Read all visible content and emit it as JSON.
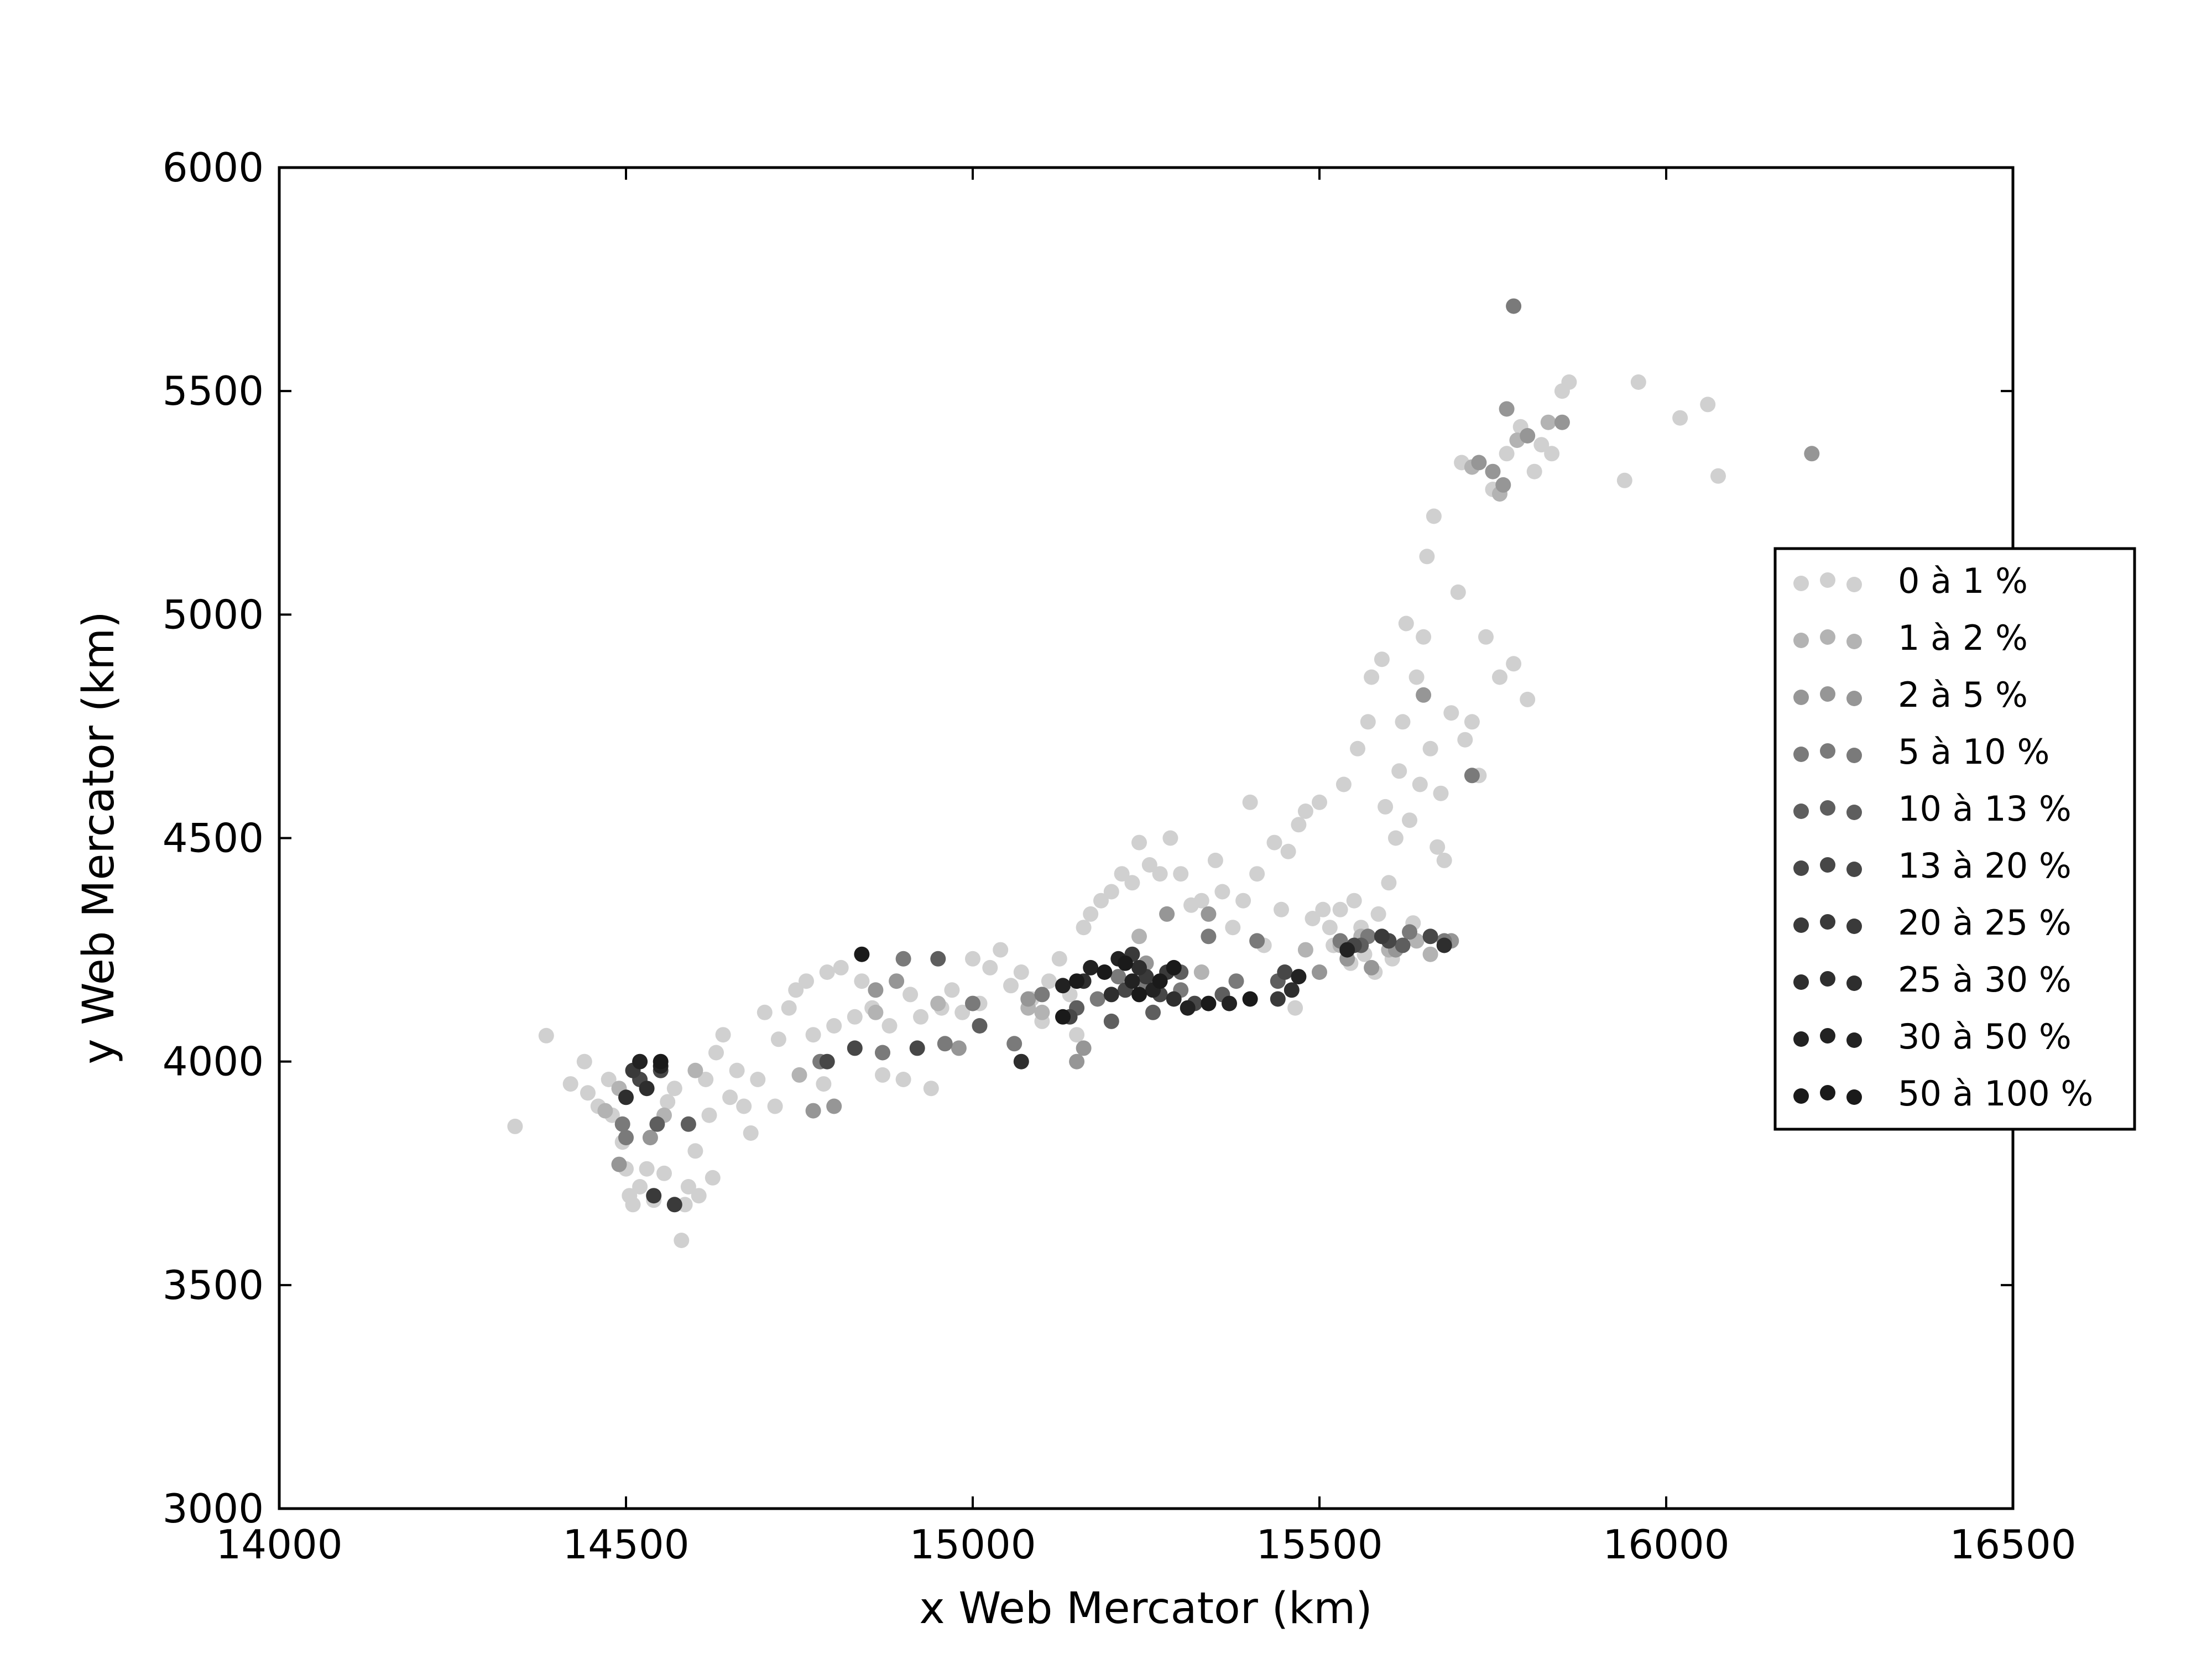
{
  "chart_data": {
    "type": "scatter",
    "title": "",
    "xlabel": "x Web Mercator (km)",
    "ylabel": "y Web Mercator (km)",
    "xlim": [
      14000,
      16500
    ],
    "ylim": [
      3000,
      6000
    ],
    "xticks": [
      "14000",
      "14500",
      "15000",
      "15500",
      "16000",
      "16500"
    ],
    "yticks": [
      "3000",
      "3500",
      "4000",
      "4500",
      "5000",
      "5500",
      "6000"
    ],
    "grid": false,
    "legend_position": "right",
    "series": [
      {
        "name": "0 à 1 %",
        "color": "#d0d0d0",
        "points": [
          [
            14340,
            3855
          ],
          [
            14385,
            4058
          ],
          [
            14420,
            3950
          ],
          [
            14440,
            4000
          ],
          [
            14445,
            3930
          ],
          [
            14460,
            3900
          ],
          [
            14475,
            3960
          ],
          [
            14480,
            3880
          ],
          [
            14495,
            3820
          ],
          [
            14500,
            3760
          ],
          [
            14505,
            3700
          ],
          [
            14510,
            3680
          ],
          [
            14520,
            3720
          ],
          [
            14530,
            3760
          ],
          [
            14540,
            3690
          ],
          [
            14555,
            3750
          ],
          [
            14560,
            3910
          ],
          [
            14570,
            3940
          ],
          [
            14580,
            3600
          ],
          [
            14585,
            3680
          ],
          [
            14590,
            3720
          ],
          [
            14600,
            3800
          ],
          [
            14605,
            3700
          ],
          [
            14615,
            3960
          ],
          [
            14620,
            3880
          ],
          [
            14625,
            3740
          ],
          [
            14630,
            4020
          ],
          [
            14640,
            4060
          ],
          [
            14650,
            3920
          ],
          [
            14660,
            3980
          ],
          [
            14670,
            3900
          ],
          [
            14680,
            3840
          ],
          [
            14690,
            3960
          ],
          [
            14700,
            4110
          ],
          [
            14715,
            3900
          ],
          [
            14720,
            4050
          ],
          [
            14735,
            4120
          ],
          [
            14745,
            4160
          ],
          [
            14760,
            4180
          ],
          [
            14770,
            4060
          ],
          [
            14785,
            3950
          ],
          [
            14790,
            4200
          ],
          [
            14800,
            4080
          ],
          [
            14810,
            4210
          ],
          [
            14830,
            4100
          ],
          [
            14840,
            4180
          ],
          [
            14855,
            4120
          ],
          [
            14870,
            3970
          ],
          [
            14880,
            4080
          ],
          [
            14900,
            3960
          ],
          [
            14910,
            4150
          ],
          [
            14925,
            4100
          ],
          [
            14940,
            3940
          ],
          [
            14955,
            4120
          ],
          [
            14970,
            4160
          ],
          [
            14985,
            4110
          ],
          [
            15000,
            4230
          ],
          [
            15010,
            4130
          ],
          [
            15025,
            4210
          ],
          [
            15040,
            4250
          ],
          [
            15055,
            4170
          ],
          [
            15070,
            4200
          ],
          [
            15085,
            4140
          ],
          [
            15100,
            4090
          ],
          [
            15110,
            4180
          ],
          [
            15125,
            4230
          ],
          [
            15140,
            4150
          ],
          [
            15150,
            4060
          ],
          [
            15160,
            4300
          ],
          [
            15170,
            4330
          ],
          [
            15185,
            4360
          ],
          [
            15200,
            4380
          ],
          [
            15215,
            4420
          ],
          [
            15230,
            4400
          ],
          [
            15240,
            4490
          ],
          [
            15255,
            4440
          ],
          [
            15270,
            4420
          ],
          [
            15285,
            4500
          ],
          [
            15300,
            4420
          ],
          [
            15315,
            4350
          ],
          [
            15330,
            4360
          ],
          [
            15350,
            4450
          ],
          [
            15360,
            4380
          ],
          [
            15375,
            4300
          ],
          [
            15390,
            4360
          ],
          [
            15400,
            4580
          ],
          [
            15410,
            4420
          ],
          [
            15420,
            4260
          ],
          [
            15435,
            4490
          ],
          [
            15445,
            4340
          ],
          [
            15455,
            4470
          ],
          [
            15465,
            4120
          ],
          [
            15470,
            4530
          ],
          [
            15480,
            4560
          ],
          [
            15490,
            4320
          ],
          [
            15500,
            4580
          ],
          [
            15505,
            4340
          ],
          [
            15515,
            4300
          ],
          [
            15520,
            4260
          ],
          [
            15530,
            4340
          ],
          [
            15535,
            4620
          ],
          [
            15545,
            4220
          ],
          [
            15550,
            4360
          ],
          [
            15555,
            4700
          ],
          [
            15560,
            4300
          ],
          [
            15565,
            4240
          ],
          [
            15570,
            4760
          ],
          [
            15575,
            4860
          ],
          [
            15580,
            4200
          ],
          [
            15585,
            4330
          ],
          [
            15590,
            4900
          ],
          [
            15595,
            4570
          ],
          [
            15600,
            4400
          ],
          [
            15605,
            4230
          ],
          [
            15610,
            4500
          ],
          [
            15615,
            4650
          ],
          [
            15620,
            4760
          ],
          [
            15625,
            4980
          ],
          [
            15630,
            4540
          ],
          [
            15635,
            4310
          ],
          [
            15640,
            4860
          ],
          [
            15645,
            4620
          ],
          [
            15650,
            4950
          ],
          [
            15655,
            5130
          ],
          [
            15660,
            4700
          ],
          [
            15665,
            5220
          ],
          [
            15670,
            4480
          ],
          [
            15675,
            4600
          ],
          [
            15680,
            4450
          ],
          [
            15690,
            4780
          ],
          [
            15700,
            5050
          ],
          [
            15705,
            5340
          ],
          [
            15710,
            4720
          ],
          [
            15720,
            4760
          ],
          [
            15730,
            4640
          ],
          [
            15740,
            4950
          ],
          [
            15750,
            5280
          ],
          [
            15760,
            4860
          ],
          [
            15770,
            5360
          ],
          [
            15780,
            4890
          ],
          [
            15790,
            5420
          ],
          [
            15800,
            4810
          ],
          [
            15810,
            5320
          ],
          [
            15820,
            5380
          ],
          [
            15835,
            5360
          ],
          [
            15850,
            5500
          ],
          [
            15860,
            5520
          ],
          [
            15940,
            5300
          ],
          [
            15960,
            5520
          ],
          [
            16020,
            5440
          ],
          [
            16060,
            5470
          ],
          [
            16075,
            5310
          ]
        ]
      },
      {
        "name": "1 à 2 %",
        "color": "#b3b3b3",
        "points": [
          [
            14470,
            3890
          ],
          [
            14490,
            3940
          ],
          [
            14555,
            3880
          ],
          [
            14600,
            3980
          ],
          [
            14750,
            3970
          ],
          [
            14860,
            4110
          ],
          [
            14950,
            4130
          ],
          [
            15080,
            4120
          ],
          [
            15100,
            4110
          ],
          [
            15240,
            4280
          ],
          [
            15330,
            4200
          ],
          [
            15480,
            4250
          ],
          [
            15530,
            4260
          ],
          [
            15560,
            4280
          ],
          [
            15600,
            4250
          ],
          [
            15640,
            4270
          ],
          [
            15660,
            4240
          ],
          [
            15720,
            5330
          ],
          [
            15760,
            5270
          ],
          [
            15785,
            5390
          ],
          [
            15830,
            5430
          ]
        ]
      },
      {
        "name": "2 à 5 %",
        "color": "#969696",
        "points": [
          [
            14490,
            3770
          ],
          [
            14535,
            3830
          ],
          [
            14770,
            3890
          ],
          [
            14800,
            3900
          ],
          [
            14860,
            4160
          ],
          [
            14890,
            4180
          ],
          [
            14980,
            4030
          ],
          [
            15080,
            4140
          ],
          [
            15150,
            4000
          ],
          [
            15160,
            4030
          ],
          [
            15250,
            4220
          ],
          [
            15280,
            4330
          ],
          [
            15340,
            4330
          ],
          [
            15500,
            4200
          ],
          [
            15540,
            4230
          ],
          [
            15575,
            4210
          ],
          [
            15610,
            4250
          ],
          [
            15650,
            4820
          ],
          [
            15690,
            4270
          ],
          [
            15730,
            5340
          ],
          [
            15750,
            5320
          ],
          [
            15765,
            5290
          ],
          [
            15770,
            5460
          ],
          [
            15800,
            5400
          ],
          [
            15850,
            5430
          ],
          [
            16210,
            5360
          ]
        ]
      },
      {
        "name": "5 à 10 %",
        "color": "#7a7a7a",
        "points": [
          [
            14495,
            3860
          ],
          [
            14500,
            3830
          ],
          [
            14780,
            4000
          ],
          [
            14870,
            4020
          ],
          [
            14900,
            4230
          ],
          [
            14960,
            4040
          ],
          [
            15000,
            4130
          ],
          [
            15060,
            4040
          ],
          [
            15100,
            4150
          ],
          [
            15180,
            4140
          ],
          [
            15210,
            4190
          ],
          [
            15250,
            4170
          ],
          [
            15300,
            4160
          ],
          [
            15340,
            4280
          ],
          [
            15380,
            4180
          ],
          [
            15410,
            4270
          ],
          [
            15530,
            4270
          ],
          [
            15570,
            4280
          ],
          [
            15600,
            4270
          ],
          [
            15630,
            4290
          ],
          [
            15680,
            4270
          ],
          [
            15720,
            4640
          ],
          [
            15780,
            5690
          ]
        ]
      },
      {
        "name": "10 à 13 %",
        "color": "#5e5e5e",
        "points": [
          [
            14545,
            3860
          ],
          [
            14590,
            3860
          ],
          [
            14950,
            4230
          ],
          [
            15010,
            4080
          ],
          [
            15150,
            4120
          ],
          [
            15200,
            4090
          ],
          [
            15260,
            4110
          ],
          [
            15300,
            4200
          ],
          [
            15360,
            4150
          ],
          [
            15440,
            4180
          ],
          [
            15560,
            4260
          ],
          [
            15620,
            4260
          ]
        ]
      },
      {
        "name": "13 à 20 %",
        "color": "#474747",
        "points": [
          [
            14520,
            3960
          ],
          [
            14550,
            3980
          ],
          [
            14790,
            4000
          ],
          [
            14830,
            4030
          ],
          [
            14920,
            4030
          ],
          [
            15140,
            4100
          ],
          [
            15220,
            4160
          ],
          [
            15270,
            4150
          ],
          [
            15320,
            4130
          ],
          [
            15450,
            4200
          ],
          [
            15550,
            4260
          ],
          [
            15600,
            4270
          ],
          [
            15660,
            4280
          ]
        ]
      },
      {
        "name": "20 à 25 %",
        "color": "#3a3a3a",
        "points": [
          [
            14540,
            3700
          ],
          [
            14570,
            3680
          ],
          [
            14510,
            3980
          ],
          [
            15230,
            4240
          ],
          [
            15250,
            4190
          ],
          [
            15280,
            4200
          ],
          [
            15440,
            4140
          ],
          [
            15590,
            4280
          ]
        ]
      },
      {
        "name": "25 à 30 %",
        "color": "#2e2e2e",
        "points": [
          [
            14500,
            3920
          ],
          [
            14530,
            3940
          ],
          [
            15070,
            4000
          ],
          [
            15160,
            4180
          ],
          [
            15200,
            4150
          ],
          [
            15240,
            4210
          ],
          [
            15290,
            4140
          ],
          [
            15460,
            4160
          ],
          [
            15680,
            4260
          ]
        ]
      },
      {
        "name": "30 à 50 %",
        "color": "#222222",
        "points": [
          [
            14520,
            4000
          ],
          [
            14550,
            3990
          ],
          [
            15130,
            4170
          ],
          [
            15170,
            4210
          ],
          [
            15210,
            4230
          ],
          [
            15230,
            4180
          ],
          [
            15260,
            4160
          ],
          [
            15310,
            4120
          ],
          [
            15370,
            4130
          ],
          [
            15470,
            4190
          ],
          [
            15540,
            4250
          ]
        ]
      },
      {
        "name": "50 à 100 %",
        "color": "#1a1a1a",
        "points": [
          [
            14550,
            4000
          ],
          [
            14840,
            4240
          ],
          [
            15130,
            4100
          ],
          [
            15150,
            4180
          ],
          [
            15190,
            4200
          ],
          [
            15220,
            4220
          ],
          [
            15240,
            4150
          ],
          [
            15270,
            4180
          ],
          [
            15290,
            4210
          ],
          [
            15340,
            4130
          ],
          [
            15400,
            4140
          ]
        ]
      }
    ]
  }
}
